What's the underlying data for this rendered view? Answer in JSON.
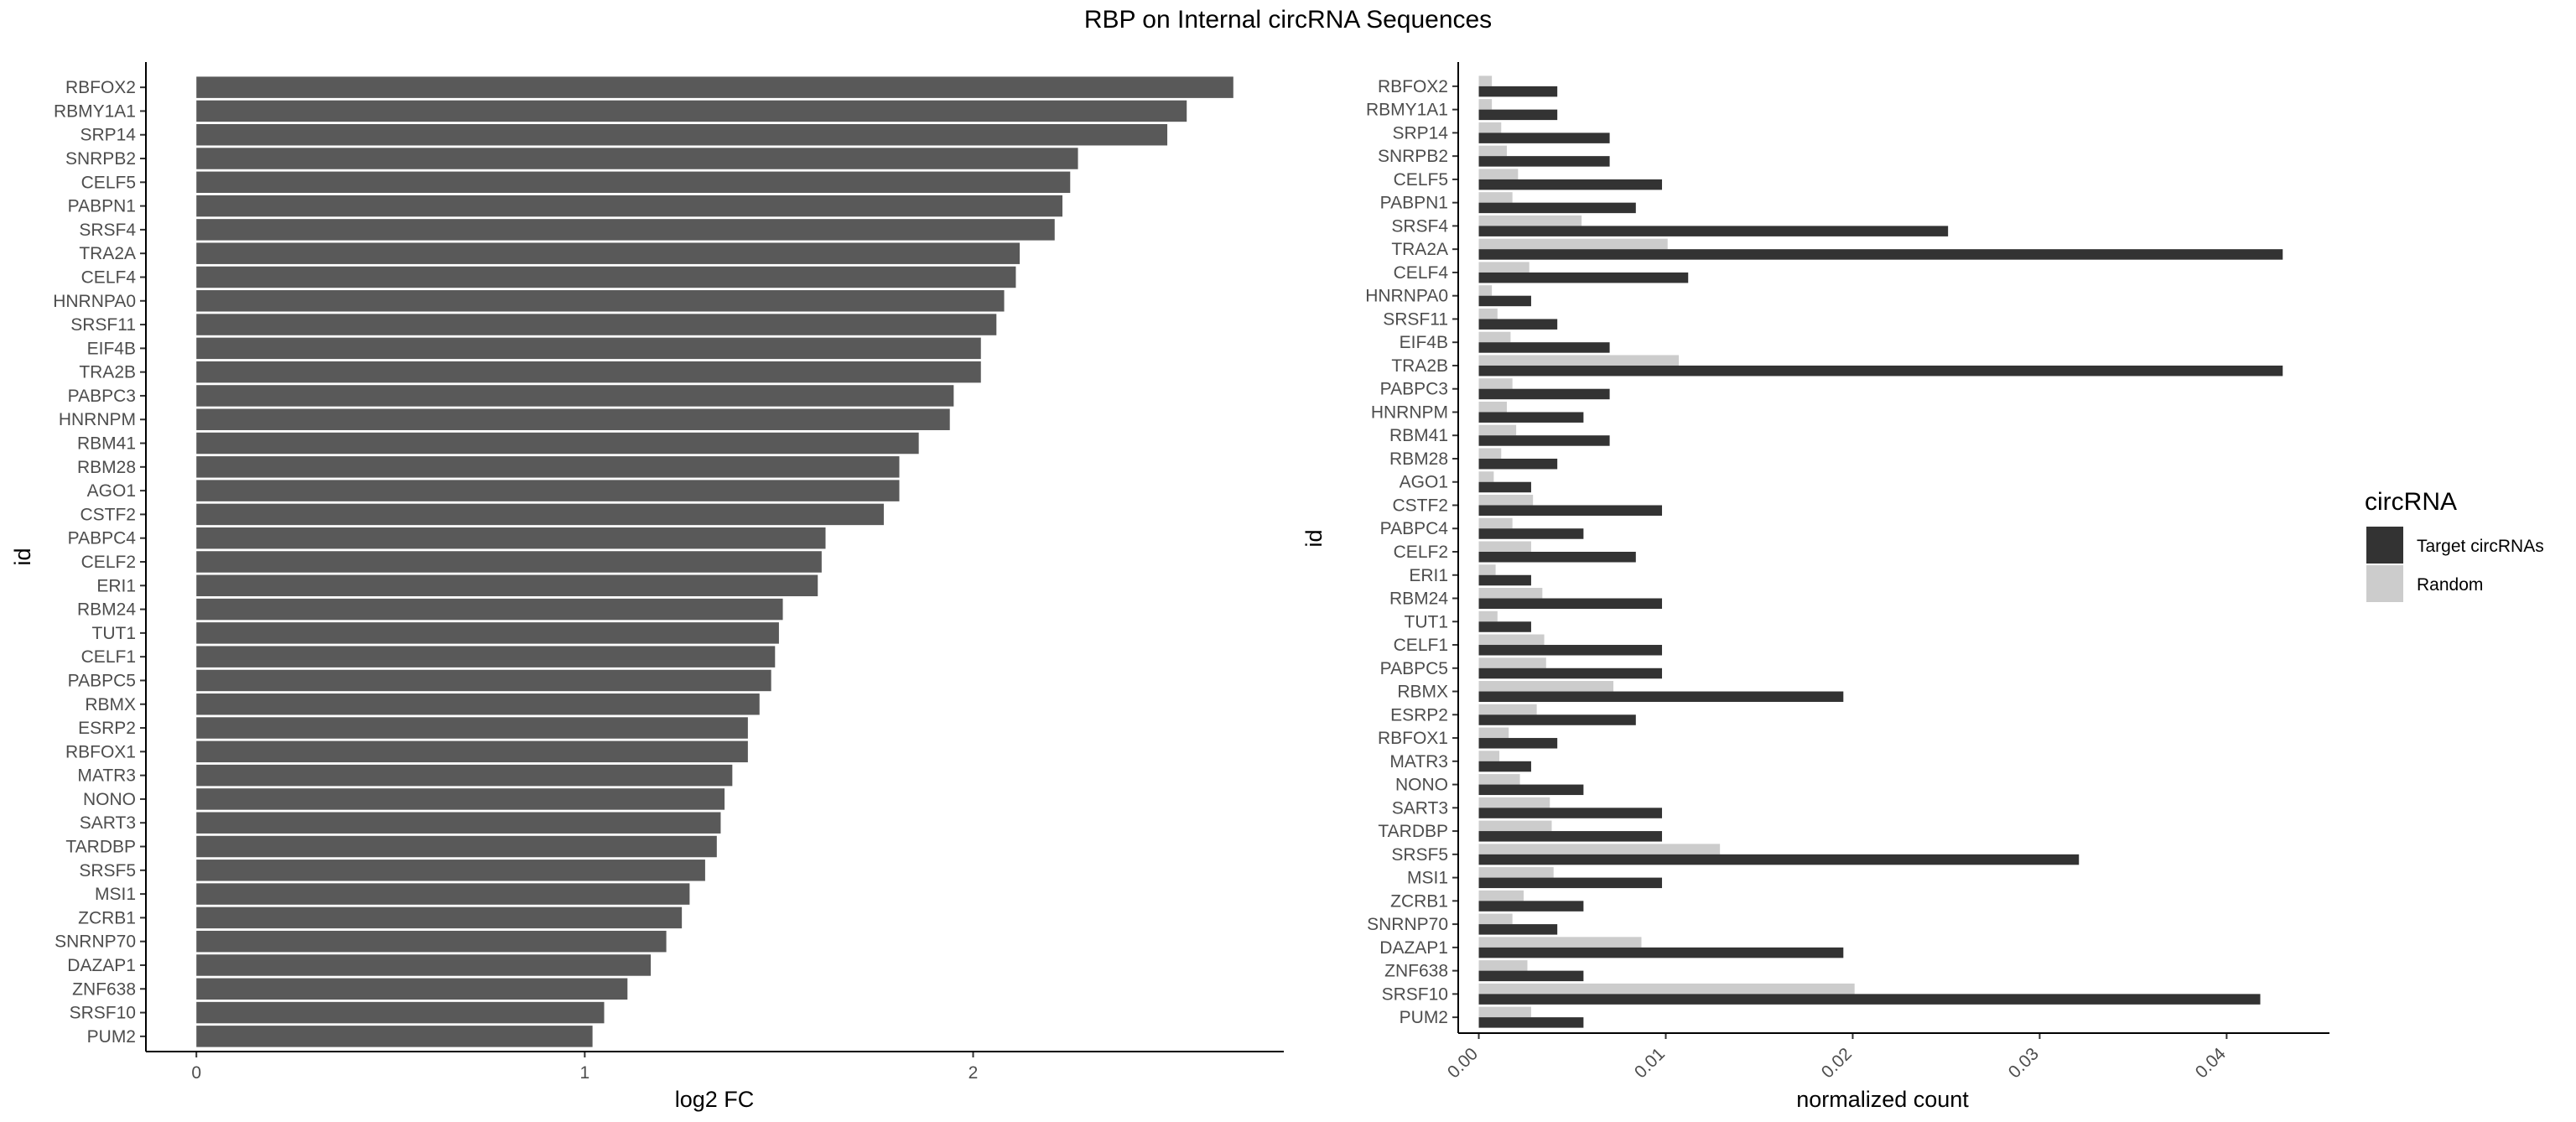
{
  "title": "RBP on Internal circRNA Sequences",
  "chart_data": [
    {
      "type": "bar",
      "orientation": "horizontal",
      "xlabel": "log2 FC",
      "ylabel": "id",
      "xlim": [
        -0.13,
        2.8
      ],
      "xticks": [
        "0",
        "1",
        "2"
      ],
      "color": "#595959",
      "grid": false,
      "categories": [
        "RBFOX2",
        "RBMY1A1",
        "SRP14",
        "SNRPB2",
        "CELF5",
        "PABPN1",
        "SRSF4",
        "TRA2A",
        "CELF4",
        "HNRNPA0",
        "SRSF11",
        "EIF4B",
        "TRA2B",
        "PABPC3",
        "HNRNPM",
        "RBM41",
        "RBM28",
        "AGO1",
        "CSTF2",
        "PABPC4",
        "CELF2",
        "ERI1",
        "RBM24",
        "TUT1",
        "CELF1",
        "PABPC5",
        "RBMX",
        "ESRP2",
        "RBFOX1",
        "MATR3",
        "NONO",
        "SART3",
        "TARDBP",
        "SRSF5",
        "MSI1",
        "ZCRB1",
        "SNRNP70",
        "DAZAP1",
        "ZNF638",
        "SRSF10",
        "PUM2"
      ],
      "values": [
        2.67,
        2.55,
        2.5,
        2.27,
        2.25,
        2.23,
        2.21,
        2.12,
        2.11,
        2.08,
        2.06,
        2.02,
        2.02,
        1.95,
        1.94,
        1.86,
        1.81,
        1.81,
        1.77,
        1.62,
        1.61,
        1.6,
        1.51,
        1.5,
        1.49,
        1.48,
        1.45,
        1.42,
        1.42,
        1.38,
        1.36,
        1.35,
        1.34,
        1.31,
        1.27,
        1.25,
        1.21,
        1.17,
        1.11,
        1.05,
        1.02
      ]
    },
    {
      "type": "bar",
      "orientation": "horizontal",
      "xlabel": "normalized count",
      "ylabel": "id",
      "xlim": [
        -0.0011,
        0.0455
      ],
      "xticks": [
        "0.00",
        "0.01",
        "0.02",
        "0.03",
        "0.04"
      ],
      "grid": false,
      "legend": {
        "title": "circRNA",
        "position": "right",
        "entries": [
          {
            "label": "Target circRNAs",
            "color": "#333333"
          },
          {
            "label": "Random",
            "color": "#cccccc"
          }
        ]
      },
      "categories": [
        "RBFOX2",
        "RBMY1A1",
        "SRP14",
        "SNRPB2",
        "CELF5",
        "PABPN1",
        "SRSF4",
        "TRA2A",
        "CELF4",
        "HNRNPA0",
        "SRSF11",
        "EIF4B",
        "TRA2B",
        "PABPC3",
        "HNRNPM",
        "RBM41",
        "RBM28",
        "AGO1",
        "CSTF2",
        "PABPC4",
        "CELF2",
        "ERI1",
        "RBM24",
        "TUT1",
        "CELF1",
        "PABPC5",
        "RBMX",
        "ESRP2",
        "RBFOX1",
        "MATR3",
        "NONO",
        "SART3",
        "TARDBP",
        "SRSF5",
        "MSI1",
        "ZCRB1",
        "SNRNP70",
        "DAZAP1",
        "ZNF638",
        "SRSF10",
        "PUM2"
      ],
      "series": [
        {
          "name": "Target circRNAs",
          "values": [
            0.0042,
            0.0042,
            0.007,
            0.007,
            0.0098,
            0.0084,
            0.0251,
            0.043,
            0.0112,
            0.0028,
            0.0042,
            0.007,
            0.043,
            0.007,
            0.0056,
            0.007,
            0.0042,
            0.0028,
            0.0098,
            0.0056,
            0.0084,
            0.0028,
            0.0098,
            0.0028,
            0.0098,
            0.0098,
            0.0195,
            0.0084,
            0.0042,
            0.0028,
            0.0056,
            0.0098,
            0.0098,
            0.0321,
            0.0098,
            0.0056,
            0.0042,
            0.0195,
            0.0056,
            0.0418,
            0.0056
          ]
        },
        {
          "name": "Random",
          "values": [
            0.0007,
            0.0007,
            0.0012,
            0.0015,
            0.0021,
            0.0018,
            0.0055,
            0.0101,
            0.0027,
            0.0007,
            0.001,
            0.0017,
            0.0107,
            0.0018,
            0.0015,
            0.002,
            0.0012,
            0.0008,
            0.0029,
            0.0018,
            0.0028,
            0.0009,
            0.0034,
            0.001,
            0.0035,
            0.0036,
            0.0072,
            0.0031,
            0.0016,
            0.0011,
            0.0022,
            0.0038,
            0.0039,
            0.0129,
            0.004,
            0.0024,
            0.0018,
            0.0087,
            0.0026,
            0.0201,
            0.0028
          ]
        }
      ]
    }
  ]
}
